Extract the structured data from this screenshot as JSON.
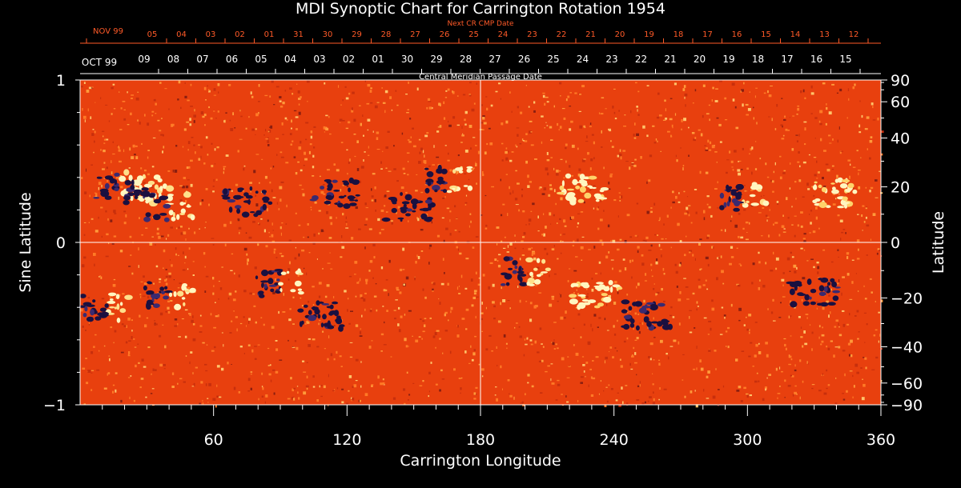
{
  "title": "MDI Synoptic Chart for Carrington Rotation 1954",
  "top_axis": {
    "label": "Next CR CMP Date",
    "month_label": "NOV 99",
    "ticks": [
      "05",
      "04",
      "03",
      "02",
      "01",
      "31",
      "30",
      "29",
      "28",
      "27",
      "26",
      "25",
      "24",
      "23",
      "22",
      "21",
      "20",
      "19",
      "18",
      "17",
      "16",
      "15",
      "14",
      "13",
      "12"
    ]
  },
  "second_axis": {
    "label": "Central Meridian Passage Date",
    "month_label": "OCT 99",
    "ticks": [
      "09",
      "08",
      "07",
      "06",
      "05",
      "04",
      "03",
      "02",
      "01",
      "30",
      "29",
      "28",
      "27",
      "26",
      "25",
      "24",
      "23",
      "22",
      "21",
      "20",
      "19",
      "18",
      "17",
      "16",
      "15"
    ]
  },
  "left_axis": {
    "label": "Sine Latitude",
    "ticks": [
      "1",
      "0",
      "−1"
    ]
  },
  "right_axis": {
    "label": "Latitude",
    "ticks": [
      "90",
      "60",
      "40",
      "20",
      "0",
      "−20",
      "−40",
      "−60",
      "−90"
    ]
  },
  "bottom_axis": {
    "label": "Carrington Longitude",
    "ticks": [
      "60",
      "120",
      "180",
      "240",
      "300",
      "360"
    ]
  },
  "colors": {
    "background": "#000000",
    "field_base": "#e8400e",
    "positive_polarity": "#fff6c0",
    "negative_polarity": "#1a1040",
    "top_axis_text": "#ff5a28",
    "axis_text": "#ffffff"
  },
  "active_regions": [
    {
      "lon": 18,
      "sinlat": 0.35,
      "polarity": "mixed"
    },
    {
      "lon": 30,
      "sinlat": 0.32,
      "polarity": "mixed"
    },
    {
      "lon": 40,
      "sinlat": 0.22,
      "polarity": "mixed"
    },
    {
      "lon": 75,
      "sinlat": 0.25,
      "polarity": "negative"
    },
    {
      "lon": 115,
      "sinlat": 0.3,
      "polarity": "negative"
    },
    {
      "lon": 148,
      "sinlat": 0.22,
      "polarity": "negative"
    },
    {
      "lon": 165,
      "sinlat": 0.38,
      "polarity": "mixed"
    },
    {
      "lon": 225,
      "sinlat": 0.33,
      "polarity": "positive"
    },
    {
      "lon": 298,
      "sinlat": 0.28,
      "polarity": "mixed"
    },
    {
      "lon": 338,
      "sinlat": 0.3,
      "polarity": "positive"
    },
    {
      "lon": 12,
      "sinlat": -0.4,
      "polarity": "mixed"
    },
    {
      "lon": 40,
      "sinlat": -0.32,
      "polarity": "mixed"
    },
    {
      "lon": 90,
      "sinlat": -0.25,
      "polarity": "mixed"
    },
    {
      "lon": 108,
      "sinlat": -0.45,
      "polarity": "negative"
    },
    {
      "lon": 200,
      "sinlat": -0.18,
      "polarity": "mixed"
    },
    {
      "lon": 232,
      "sinlat": -0.33,
      "polarity": "positive"
    },
    {
      "lon": 255,
      "sinlat": -0.45,
      "polarity": "negative"
    },
    {
      "lon": 330,
      "sinlat": -0.3,
      "polarity": "negative"
    }
  ]
}
